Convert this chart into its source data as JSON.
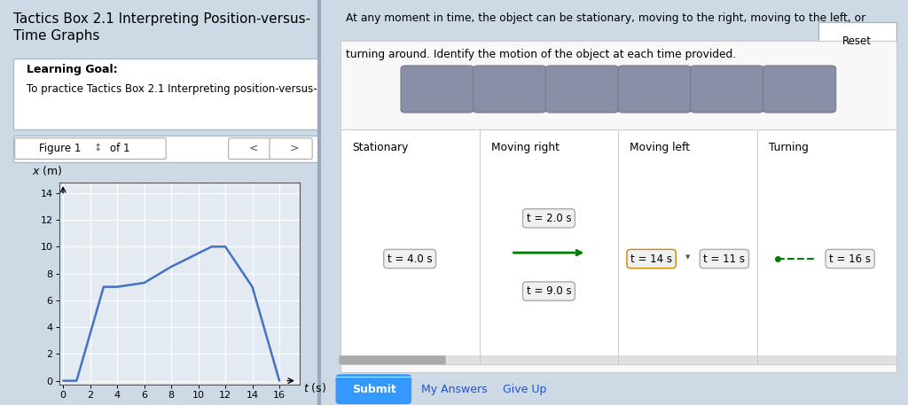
{
  "title_left": "Tactics Box 2.1 Interpreting Position-versus-\nTime Graphs",
  "learning_goal_label": "Learning Goal:",
  "learning_goal_text": "To practice Tactics Box 2.1 Interpreting position-versus-",
  "figure_label": "Figure 1",
  "of_label": "of 1",
  "graph_xlabel": "t (s)",
  "graph_ylabel": "x (m)",
  "graph_t": [
    0,
    1,
    3,
    4,
    6,
    8,
    11,
    12,
    14,
    16
  ],
  "graph_x": [
    0,
    0,
    7,
    7,
    7.3,
    8.5,
    10,
    10,
    7,
    0
  ],
  "xticks": [
    0,
    2,
    4,
    6,
    8,
    10,
    12,
    14,
    16
  ],
  "yticks": [
    0,
    2,
    4,
    6,
    8,
    10,
    12,
    14
  ],
  "line_color": "#4472C4",
  "bg_color_left": "#cdd9e5",
  "bg_color_right": "#ffffff",
  "right_text_line1": "At any moment in time, the object can be stationary, moving to the right, moving to the left, or",
  "right_text_line2": "turning around. Identify the motion of the object at each time provided.",
  "categories": [
    "Stationary",
    "Moving right",
    "Moving left",
    "Turning"
  ],
  "gray_box_color": "#8a8fa8",
  "submit_color": "#3399ff",
  "reset_label": "Reset",
  "divider_x": 0.362
}
